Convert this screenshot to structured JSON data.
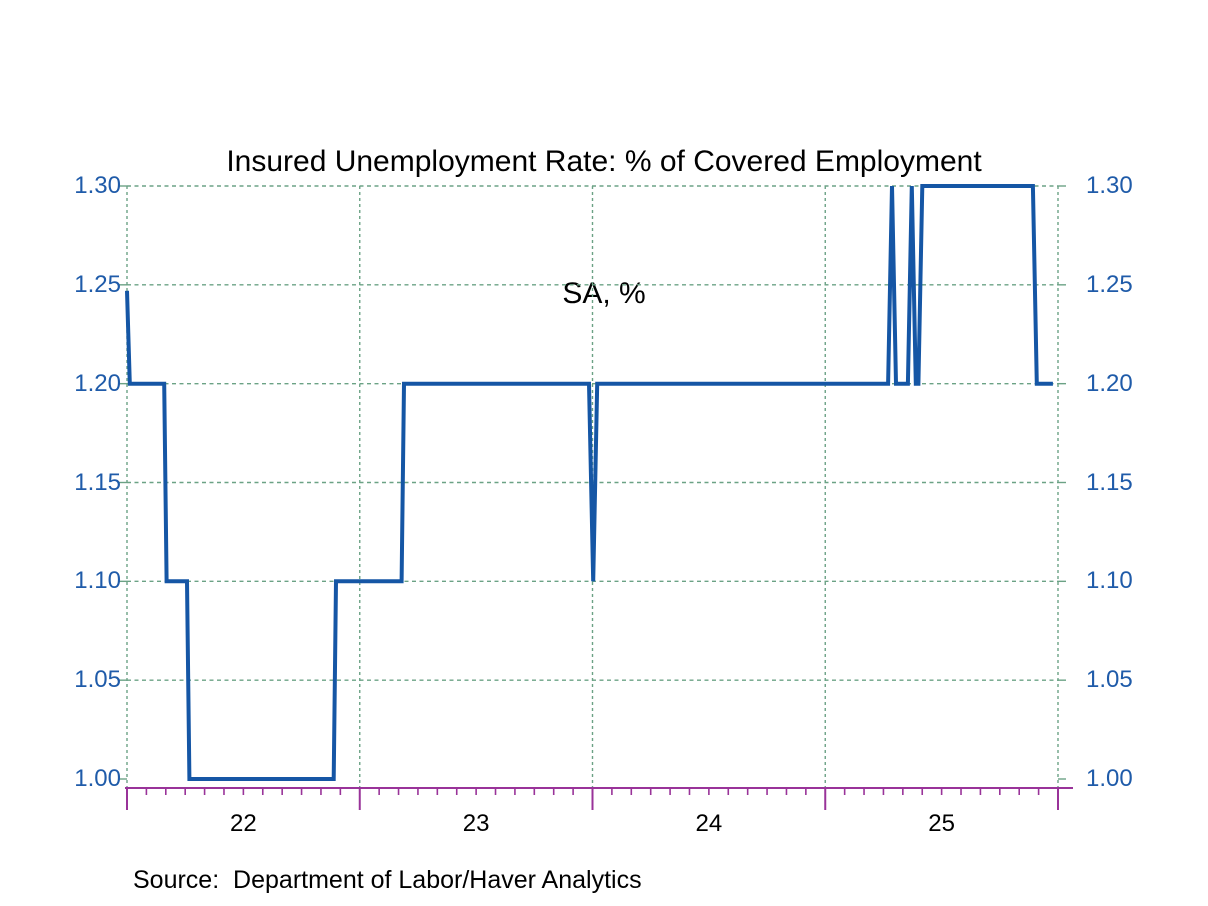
{
  "title": {
    "line1": "Insured Unemployment Rate: % of Covered Employment",
    "line2": "SA, %"
  },
  "source_note": "Source:  Department of Labor/Haver Analytics",
  "chart_data": {
    "type": "line",
    "title": "Insured Unemployment Rate: % of Covered Employment",
    "subtitle": "SA, %",
    "source": "Source:  Department of Labor/Haver Analytics",
    "legend": "none",
    "grid": "dashed horizontal gridlines at each 0.05 step and dashed vertical gridlines at year boundaries",
    "x_domain": [
      2022,
      2026
    ],
    "ylim": [
      1.0,
      1.3
    ],
    "yticks": [
      {
        "value": 1.0,
        "label": "1.00"
      },
      {
        "value": 1.05,
        "label": "1.05"
      },
      {
        "value": 1.1,
        "label": "1.10"
      },
      {
        "value": 1.15,
        "label": "1.15"
      },
      {
        "value": 1.2,
        "label": "1.20"
      },
      {
        "value": 1.25,
        "label": "1.25"
      },
      {
        "value": 1.3,
        "label": "1.30"
      }
    ],
    "x_year_labels": [
      {
        "label": "22",
        "center": 2022.5
      },
      {
        "label": "23",
        "center": 2023.5
      },
      {
        "label": "24",
        "center": 2024.5
      },
      {
        "label": "25",
        "center": 2025.5
      }
    ],
    "x_year_boundaries": [
      2022,
      2023,
      2024,
      2025,
      2026
    ],
    "x_minor_ticks_per_year": 12,
    "series": [
      {
        "name": "Insured Unemployment Rate (SA, %)",
        "points": [
          [
            2022.0,
            1.247
          ],
          [
            2022.012,
            1.2
          ],
          [
            2022.16,
            1.2
          ],
          [
            2022.17,
            1.1
          ],
          [
            2022.258,
            1.1
          ],
          [
            2022.268,
            1.0
          ],
          [
            2022.888,
            1.0
          ],
          [
            2022.898,
            1.1
          ],
          [
            2023.18,
            1.1
          ],
          [
            2023.19,
            1.2
          ],
          [
            2023.985,
            1.2
          ],
          [
            2024.003,
            1.1
          ],
          [
            2024.02,
            1.2
          ],
          [
            2025.27,
            1.2
          ],
          [
            2025.287,
            1.3
          ],
          [
            2025.304,
            1.2
          ],
          [
            2025.355,
            1.2
          ],
          [
            2025.372,
            1.3
          ],
          [
            2025.389,
            1.2
          ],
          [
            2025.4,
            1.2
          ],
          [
            2025.417,
            1.3
          ],
          [
            2025.892,
            1.3
          ],
          [
            2025.909,
            1.2
          ],
          [
            2025.978,
            1.2
          ]
        ]
      }
    ],
    "colors": {
      "line": "#1556a5",
      "axis_labels": "#1f5ba9",
      "grid": "#6ba285",
      "x_axis": "#993399",
      "text": "#000000"
    }
  }
}
